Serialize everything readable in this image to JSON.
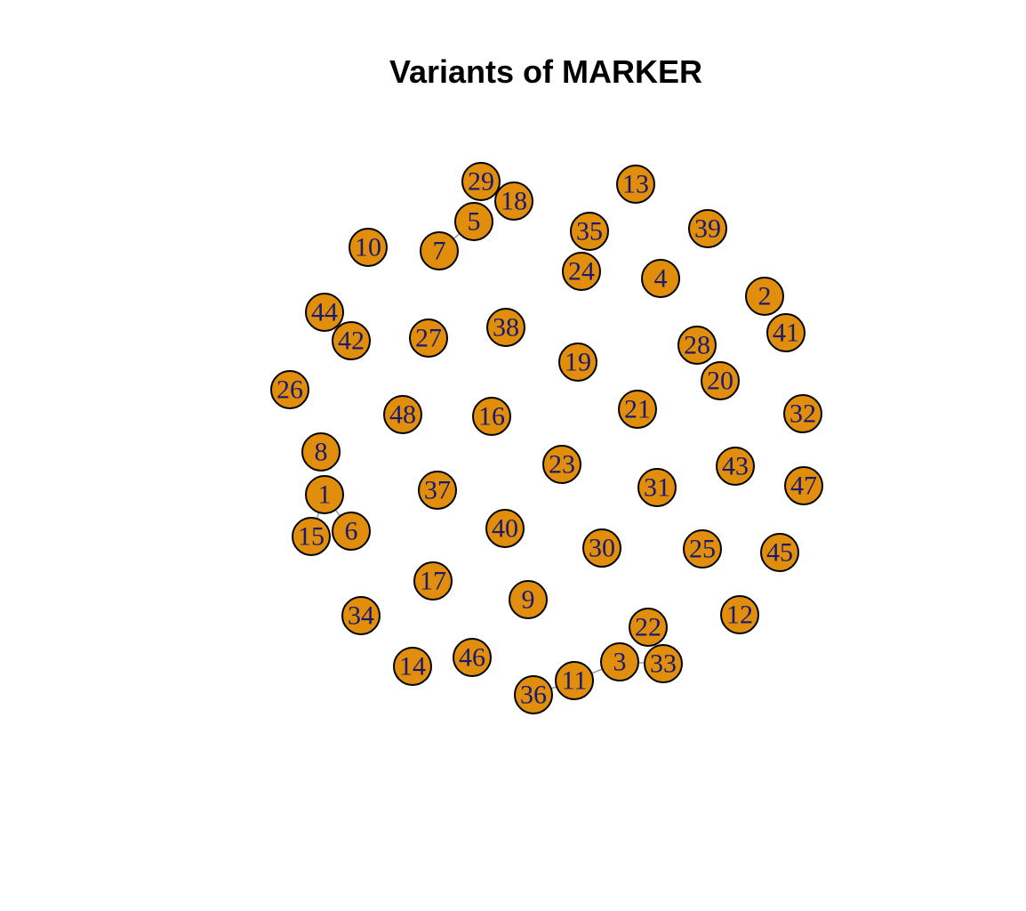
{
  "title": "Variants of MARKER",
  "colors": {
    "node_fill": "#E08E0B",
    "node_border": "#000000",
    "label": "#1A1A6E",
    "edge": "#9A9A9A",
    "background": "#FFFFFF"
  },
  "nodes": [
    "1",
    "2",
    "3",
    "4",
    "5",
    "6",
    "7",
    "8",
    "9",
    "10",
    "11",
    "12",
    "13",
    "14",
    "15",
    "16",
    "17",
    "18",
    "19",
    "20",
    "21",
    "22",
    "23",
    "24",
    "25",
    "26",
    "27",
    "28",
    "29",
    "30",
    "31",
    "32",
    "33",
    "34",
    "35",
    "36",
    "37",
    "38",
    "39",
    "40",
    "41",
    "42",
    "43",
    "44",
    "45",
    "46",
    "47",
    "48"
  ],
  "edges": [
    [
      "1",
      "15"
    ],
    [
      "1",
      "6"
    ],
    [
      "29",
      "18"
    ],
    [
      "5",
      "7"
    ],
    [
      "11",
      "36"
    ],
    [
      "11",
      "3"
    ],
    [
      "3",
      "33"
    ]
  ]
}
